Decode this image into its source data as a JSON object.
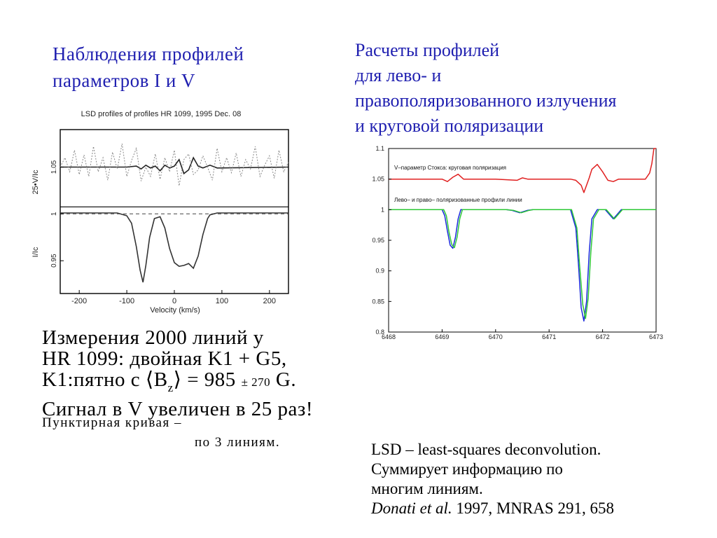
{
  "left_title": [
    "Наблюдения профилей",
    "параметров I и V"
  ],
  "right_title": [
    "Расчеты профилей",
    "для лево- и",
    "правополяризованного излучения",
    "и круговой поляризации"
  ],
  "measurement": {
    "line1": "Измерения 2000 линий у",
    "line2": "HR 1099: двойная K1 + G5,",
    "line3_prefix": "K1:пятно с ⟨B",
    "line3_sub": "z",
    "line3_mid": "⟩ = 985 ",
    "line3_err": "± 270",
    "line3_suffix": " G.",
    "line4": "Сигнал в V увеличен в 25 раз!"
  },
  "note": {
    "line1": "Пунктирная  кривая –",
    "line2": "по 3 линиям."
  },
  "lsd": {
    "line1": "LSD – least-squares deconvolution.",
    "line2": "Суммирует информацию по",
    "line3": "многим линиям.",
    "ref_italic": "Donati et al.",
    "ref_rest": " 1997, MNRAS 291, 658"
  },
  "chart_data": [
    {
      "type": "line",
      "title": "LSD profiles of profiles HR 1099, 1995 Dec. 08",
      "xlabel": "Velocity (km/s)",
      "ylabel_top": "25•V/Ic",
      "ylabel_bottom": "I/Ic",
      "xlim": [
        -240,
        240
      ],
      "ylim": [
        0.915,
        1.09
      ],
      "xticks": [
        -200,
        -100,
        0,
        100,
        200
      ],
      "xtick_labels": [
        "-200",
        "-100",
        "0",
        "100",
        "200"
      ],
      "yticks": [
        0.95,
        1.0,
        1.05
      ],
      "ytick_labels": [
        "0.95",
        "1",
        "1.05"
      ],
      "series": [
        {
          "role": "intensity-profile",
          "color": "#333333",
          "x": [
            -240,
            -120,
            -100,
            -90,
            -80,
            -72,
            -66,
            -60,
            -52,
            -42,
            -30,
            -20,
            -10,
            0,
            10,
            20,
            30,
            40,
            50,
            60,
            70,
            75,
            90,
            240
          ],
          "y": [
            1.001,
            1.001,
            0.998,
            0.99,
            0.965,
            0.94,
            0.927,
            0.945,
            0.975,
            0.995,
            0.997,
            0.985,
            0.963,
            0.948,
            0.944,
            0.945,
            0.947,
            0.942,
            0.955,
            0.978,
            0.995,
            0.999,
            1.001,
            1.001
          ]
        },
        {
          "role": "V-profile-2000-lines",
          "color": "#222222",
          "x": [
            -240,
            -100,
            -80,
            -70,
            -60,
            -50,
            -40,
            -30,
            -20,
            -10,
            0,
            10,
            20,
            30,
            40,
            50,
            60,
            75,
            90,
            240
          ],
          "y": [
            1.05,
            1.05,
            1.051,
            1.048,
            1.052,
            1.049,
            1.051,
            1.046,
            1.052,
            1.049,
            1.051,
            1.058,
            1.043,
            1.047,
            1.06,
            1.051,
            1.049,
            1.052,
            1.049,
            1.05
          ]
        },
        {
          "role": "V-profile-3-lines",
          "color": "#888888",
          "dashed": true,
          "x": [
            -240,
            -230,
            -220,
            -210,
            -200,
            -190,
            -180,
            -170,
            -160,
            -150,
            -140,
            -130,
            -120,
            -110,
            -100,
            -90,
            -80,
            -70,
            -60,
            -50,
            -40,
            -30,
            -20,
            -10,
            0,
            10,
            20,
            30,
            40,
            50,
            60,
            70,
            80,
            90,
            100,
            110,
            120,
            130,
            140,
            150,
            160,
            170,
            180,
            190,
            200,
            210,
            220,
            230,
            240
          ],
          "y": [
            1.05,
            1.06,
            1.045,
            1.068,
            1.042,
            1.063,
            1.04,
            1.072,
            1.045,
            1.06,
            1.036,
            1.066,
            1.048,
            1.075,
            1.04,
            1.057,
            1.07,
            1.035,
            1.05,
            1.04,
            1.064,
            1.037,
            1.06,
            1.045,
            1.068,
            1.03,
            1.058,
            1.064,
            1.042,
            1.047,
            1.062,
            1.05,
            1.036,
            1.07,
            1.045,
            1.06,
            1.044,
            1.065,
            1.04,
            1.058,
            1.048,
            1.072,
            1.04,
            1.052,
            1.062,
            1.038,
            1.068,
            1.045,
            1.055
          ]
        }
      ],
      "reference_line": {
        "y": 1.0,
        "dashed": true
      },
      "grid": false
    },
    {
      "type": "line",
      "xlim": [
        6468,
        6473
      ],
      "ylim": [
        0.8,
        1.1
      ],
      "xticks": [
        6468,
        6469,
        6470,
        6471,
        6472,
        6473
      ],
      "xtick_labels": [
        "6468",
        "6469",
        "6470",
        "6471",
        "6472",
        "6473"
      ],
      "yticks": [
        0.8,
        0.85,
        0.9,
        0.95,
        1.0,
        1.05,
        1.1
      ],
      "ytick_labels": [
        "0.8",
        "0.85",
        "0.9",
        "0.95",
        "1",
        "1.05",
        "1.1"
      ],
      "annotations": [
        {
          "text": "V–параметр Стокса: круговая поляризация"
        },
        {
          "text": "Лево– и право– поляризованные профили линии"
        }
      ],
      "series": [
        {
          "role": "Stokes-V",
          "color": "#e02020",
          "x": [
            6468,
            6469.0,
            6469.1,
            6469.2,
            6469.3,
            6469.4,
            6470.0,
            6470.4,
            6470.5,
            6470.6,
            6471.4,
            6471.5,
            6471.6,
            6471.65,
            6471.75,
            6471.8,
            6471.9,
            6472.0,
            6472.1,
            6472.2,
            6472.3,
            6472.8,
            6472.88,
            6472.92,
            6472.96,
            6473
          ],
          "y": [
            1.05,
            1.05,
            1.046,
            1.053,
            1.058,
            1.05,
            1.05,
            1.048,
            1.052,
            1.05,
            1.05,
            1.048,
            1.04,
            1.028,
            1.052,
            1.066,
            1.074,
            1.062,
            1.048,
            1.046,
            1.05,
            1.05,
            1.06,
            1.075,
            1.1,
            1.1
          ]
        },
        {
          "role": "left-polarized",
          "color": "#1a2adc",
          "x": [
            6468,
            6469.0,
            6469.05,
            6469.1,
            6469.15,
            6469.2,
            6469.25,
            6469.3,
            6469.35,
            6469.5,
            6470.2,
            6470.3,
            6470.45,
            6470.6,
            6470.7,
            6471.4,
            6471.5,
            6471.55,
            6471.6,
            6471.65,
            6471.7,
            6471.75,
            6471.8,
            6471.9,
            6472.05,
            6472.15,
            6472.2,
            6472.25,
            6472.35,
            6473
          ],
          "y": [
            1.0,
            1.0,
            0.99,
            0.965,
            0.942,
            0.937,
            0.955,
            0.985,
            1.0,
            1.0,
            1.0,
            0.999,
            0.995,
            0.999,
            1.0,
            1.0,
            0.97,
            0.91,
            0.84,
            0.818,
            0.85,
            0.93,
            0.985,
            1.0,
            1.0,
            0.99,
            0.985,
            0.99,
            1.0,
            1.0
          ]
        },
        {
          "role": "right-polarized",
          "color": "#2ec836",
          "x": [
            6468,
            6469.03,
            6469.08,
            6469.13,
            6469.18,
            6469.23,
            6469.28,
            6469.33,
            6469.38,
            6469.5,
            6470.2,
            6470.33,
            6470.48,
            6470.63,
            6470.7,
            6471.42,
            6471.52,
            6471.57,
            6471.63,
            6471.68,
            6471.73,
            6471.78,
            6471.83,
            6471.93,
            6472.07,
            6472.17,
            6472.22,
            6472.27,
            6472.37,
            6473
          ],
          "y": [
            1.0,
            1.0,
            0.99,
            0.963,
            0.943,
            0.938,
            0.955,
            0.985,
            1.0,
            1.0,
            1.0,
            0.999,
            0.995,
            0.999,
            1.0,
            1.0,
            0.97,
            0.91,
            0.845,
            0.822,
            0.855,
            0.93,
            0.985,
            1.0,
            1.0,
            0.99,
            0.985,
            0.99,
            1.0,
            1.0
          ]
        }
      ],
      "grid": false
    }
  ]
}
